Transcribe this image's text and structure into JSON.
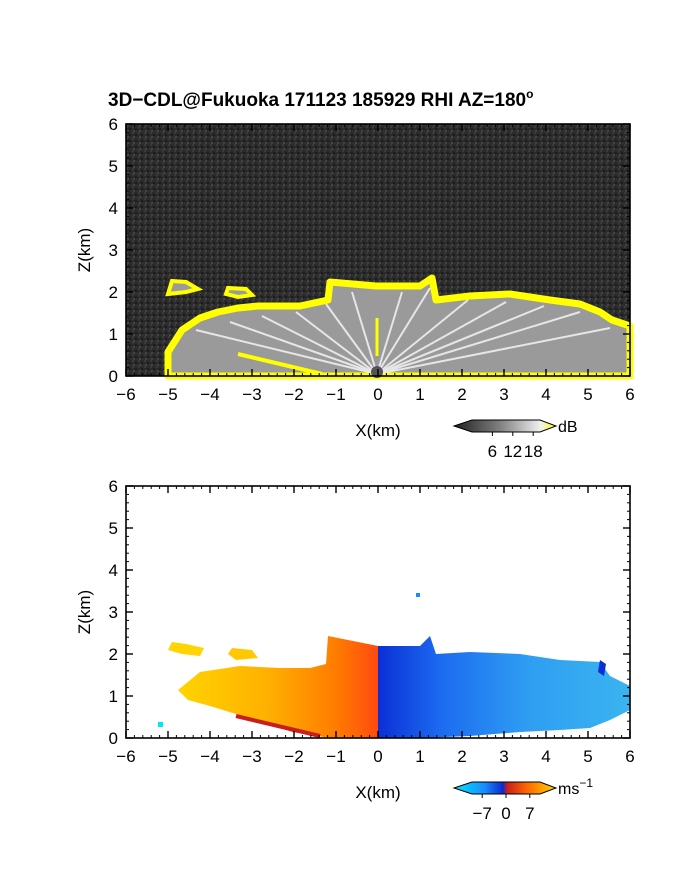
{
  "title": "3D−CDL@Fukuoka 171123 185929 RHI AZ=180",
  "title_superscript": "o",
  "chart_data": [
    {
      "type": "heatmap",
      "name": "reflectivity",
      "xlabel": "X(km)",
      "ylabel": "Z(km)",
      "xlim": [
        -6,
        6
      ],
      "ylim": [
        0,
        6
      ],
      "x_ticks": [
        "−6",
        "−5",
        "−4",
        "−3",
        "−2",
        "−1",
        "0",
        "1",
        "2",
        "3",
        "4",
        "5",
        "6"
      ],
      "y_ticks": [
        "0",
        "1",
        "2",
        "3",
        "4",
        "5",
        "6"
      ],
      "colorbar": {
        "unit": "dB",
        "ticks": [
          "6",
          "12",
          "18"
        ],
        "tick_values": [
          6,
          12,
          18
        ],
        "range": [
          0,
          20
        ],
        "colors": [
          "#202020",
          "#808080",
          "#f0f0f0",
          "#ffff00"
        ]
      },
      "echo_top_km": [
        {
          "x": -4.9,
          "z": 2.25
        },
        {
          "x": -3.5,
          "z": 2.05
        },
        {
          "x": -3.0,
          "z": 1.95
        },
        {
          "x": -2.0,
          "z": 1.65
        },
        {
          "x": -1.2,
          "z": 2.0
        },
        {
          "x": -1.0,
          "z": 2.3
        },
        {
          "x": 0.0,
          "z": 2.2
        },
        {
          "x": 1.0,
          "z": 2.2
        },
        {
          "x": 1.3,
          "z": 2.35
        },
        {
          "x": 2.0,
          "z": 1.85
        },
        {
          "x": 3.0,
          "z": 1.9
        },
        {
          "x": 4.0,
          "z": 1.75
        },
        {
          "x": 5.0,
          "z": 1.7
        },
        {
          "x": 5.6,
          "z": 1.2
        },
        {
          "x": 6.0,
          "z": 1.0
        }
      ]
    },
    {
      "type": "heatmap",
      "name": "doppler-velocity",
      "xlabel": "X(km)",
      "ylabel": "Z(km)",
      "xlim": [
        -6,
        6
      ],
      "ylim": [
        0,
        6
      ],
      "x_ticks": [
        "−6",
        "−5",
        "−4",
        "−3",
        "−2",
        "−1",
        "0",
        "1",
        "2",
        "3",
        "4",
        "5",
        "6"
      ],
      "y_ticks": [
        "0",
        "1",
        "2",
        "3",
        "4",
        "5",
        "6"
      ],
      "colorbar": {
        "unit": "ms",
        "unit_superscript": "−1",
        "ticks": [
          "−7",
          "0",
          "7"
        ],
        "tick_values": [
          -7,
          0,
          7
        ],
        "range": [
          -10,
          10
        ],
        "colors": [
          "#00e5ff",
          "#1a8cff",
          "#0a2acc",
          "#c81e1e",
          "#ff6a00",
          "#ffd400"
        ]
      },
      "velocity_field": [
        {
          "x": -4.5,
          "v": 6.5
        },
        {
          "x": -3.0,
          "v": 5.5
        },
        {
          "x": -2.0,
          "v": 4.5
        },
        {
          "x": -1.0,
          "v": 3.5
        },
        {
          "x": -0.3,
          "v": 2.0
        },
        {
          "x": 0.3,
          "v": -8.5
        },
        {
          "x": 1.0,
          "v": -6.5
        },
        {
          "x": 2.0,
          "v": -5.0
        },
        {
          "x": 3.0,
          "v": -4.2
        },
        {
          "x": 4.0,
          "v": -3.8
        },
        {
          "x": 5.0,
          "v": -3.5
        }
      ]
    }
  ]
}
